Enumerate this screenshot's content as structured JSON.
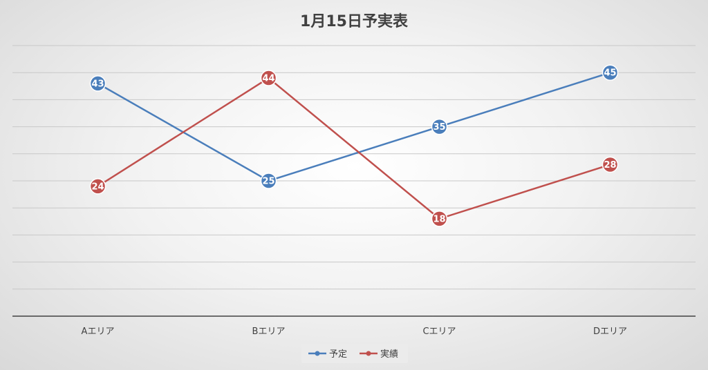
{
  "chart_data": {
    "type": "line",
    "title": "1月15日予実表",
    "categories": [
      "Aエリア",
      "Bエリア",
      "Cエリア",
      "Dエリア"
    ],
    "series": [
      {
        "name": "予定",
        "values": [
          43,
          25,
          35,
          45
        ],
        "color": "#4a7ebb"
      },
      {
        "name": "実績",
        "values": [
          24,
          44,
          18,
          28
        ],
        "color": "#c0504d"
      }
    ],
    "ylim": [
      0,
      50
    ],
    "ytick_step": 5,
    "grid": true,
    "legend": "bottom",
    "data_labels": true
  }
}
